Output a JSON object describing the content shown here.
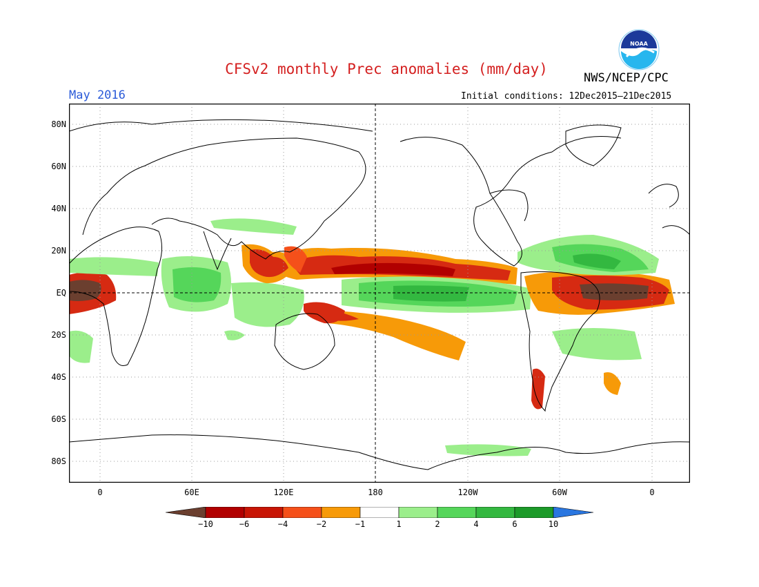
{
  "header": {
    "title": "CFSv2 monthly Prec anomalies (mm/day)",
    "agency": "NWS/NCEP/CPC",
    "month": "May 2016",
    "initial_conditions": "Initial conditions: 12Dec2015–21Dec2015",
    "logo_text": "NOAA"
  },
  "colors": {
    "title": "#d42020",
    "month": "#2a5ad8",
    "brown": "#6b3f2f",
    "dark_red": "#b10000",
    "red": "#d62a12",
    "orange_red": "#f5501a",
    "orange": "#f79a08",
    "white": "#ffffff",
    "light_green": "#9bee8b",
    "green": "#55d65a",
    "mid_green": "#33b840",
    "dark_green": "#1c9a29",
    "blue": "#2a76e0"
  },
  "axes": {
    "y_labels": [
      "80N",
      "60N",
      "40N",
      "20N",
      "EQ",
      "20S",
      "40S",
      "60S",
      "80S"
    ],
    "x_labels": [
      "0",
      "60E",
      "120E",
      "180",
      "120W",
      "60W",
      "0"
    ]
  },
  "colorbar": {
    "labels": [
      "−10",
      "−6",
      "−4",
      "−2",
      "−1",
      "1",
      "2",
      "4",
      "6",
      "10"
    ]
  }
}
